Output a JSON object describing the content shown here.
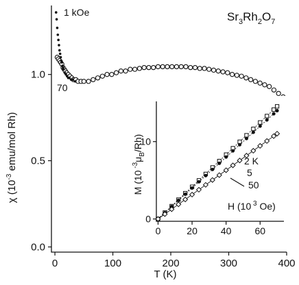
{
  "chart_data": [
    {
      "type": "scatter",
      "title": "Sr3Rh2O7",
      "title_parts": {
        "a": "Sr",
        "a_sub": "3",
        "b": "Rh",
        "b_sub": "2",
        "c": "O",
        "c_sub": "7"
      },
      "xlabel": "T (K)",
      "ylabel": {
        "pre": "χ (10",
        "exp": "-3",
        "post": " emu/mol Rh)"
      },
      "xlim": [
        -6,
        400
      ],
      "ylim": [
        -0.03,
        1.4
      ],
      "xticks": [
        0,
        100,
        200,
        300,
        400
      ],
      "xtick_labels": [
        "0",
        "100",
        "200",
        "300",
        "400"
      ],
      "yticks": [
        0.0,
        0.5,
        1.0
      ],
      "ytick_labels": [
        "0.0",
        "0.5",
        "1.0"
      ],
      "annotations": [
        "1 kOe",
        "70"
      ],
      "series": [
        {
          "name": "1 kOe",
          "marker": "filled-small",
          "x": [
            2,
            3,
            4,
            5,
            6,
            7,
            8,
            9,
            10,
            11,
            12,
            13,
            14,
            15,
            17,
            19,
            21,
            23,
            25,
            28,
            31,
            35
          ],
          "y": [
            1.36,
            1.32,
            1.27,
            1.23,
            1.2,
            1.17,
            1.14,
            1.12,
            1.1,
            1.08,
            1.07,
            1.05,
            1.04,
            1.03,
            1.01,
            1.0,
            0.99,
            0.98,
            0.98,
            0.97,
            0.97,
            0.96
          ]
        },
        {
          "name": "70",
          "marker": "open-circle",
          "x": [
            4,
            6,
            8,
            10,
            12,
            14,
            16,
            18,
            20,
            23,
            26,
            29,
            32,
            36,
            40,
            45,
            50,
            58,
            66,
            74,
            82,
            90,
            98,
            106,
            114,
            122,
            130,
            138,
            146,
            154,
            162,
            170,
            178,
            186,
            194,
            202,
            210,
            218,
            226,
            234,
            242,
            250,
            258,
            266,
            274,
            282,
            290,
            298,
            306,
            314,
            322,
            330,
            338,
            346,
            354,
            362,
            370,
            378,
            386,
            394
          ],
          "y": [
            1.1,
            1.09,
            1.08,
            1.07,
            1.06,
            1.04,
            1.03,
            1.02,
            1.01,
            1.0,
            0.99,
            0.98,
            0.97,
            0.97,
            0.96,
            0.96,
            0.96,
            0.96,
            0.97,
            0.98,
            0.99,
            1.0,
            1.0,
            1.01,
            1.02,
            1.02,
            1.03,
            1.03,
            1.035,
            1.04,
            1.04,
            1.04,
            1.045,
            1.045,
            1.045,
            1.045,
            1.045,
            1.045,
            1.045,
            1.04,
            1.04,
            1.035,
            1.035,
            1.03,
            1.025,
            1.02,
            1.015,
            1.01,
            1.0,
            0.995,
            0.99,
            0.98,
            0.97,
            0.96,
            0.95,
            0.94,
            0.93,
            0.91,
            0.89,
            0.87
          ]
        }
      ]
    },
    {
      "type": "line",
      "xlabel": {
        "pre": "H (10",
        "exp": " 3",
        "post": " Oe)"
      },
      "ylabel": {
        "pre": "M (10",
        "exp": " -3",
        "mu": "μ",
        "mu_sub": "B",
        "post": "/Rh)"
      },
      "xlim": [
        -1,
        74
      ],
      "ylim": [
        -0.3,
        15.2
      ],
      "xticks": [
        0,
        20,
        40,
        60
      ],
      "xtick_labels": [
        "0",
        "20",
        "40",
        "60"
      ],
      "yticks": [
        0,
        10
      ],
      "ytick_labels": [
        "0",
        "10"
      ],
      "series": [
        {
          "name": "2 K",
          "marker": "open-square",
          "x": [
            0,
            4,
            8,
            12,
            16,
            20,
            24,
            28,
            32,
            36,
            40,
            44,
            48,
            52,
            56,
            60,
            64,
            68,
            70
          ],
          "y": [
            0,
            0.83,
            1.66,
            2.5,
            3.33,
            4.16,
            4.99,
            5.82,
            6.66,
            7.49,
            8.32,
            9.15,
            9.98,
            10.82,
            11.65,
            12.48,
            13.31,
            14.14,
            14.56
          ]
        },
        {
          "name": "5",
          "marker": "filled-circle",
          "x": [
            0,
            4,
            8,
            12,
            16,
            20,
            24,
            28,
            32,
            36,
            40,
            44,
            48,
            52,
            56,
            60,
            64,
            68,
            70
          ],
          "y": [
            0,
            0.8,
            1.6,
            2.4,
            3.2,
            4.0,
            4.8,
            5.6,
            6.4,
            7.2,
            8.0,
            8.8,
            9.6,
            10.4,
            11.2,
            12.0,
            12.8,
            13.6,
            14.0
          ]
        },
        {
          "name": "50",
          "marker": "open-diamond",
          "x": [
            0,
            4,
            8,
            12,
            16,
            20,
            24,
            28,
            32,
            36,
            40,
            44,
            48,
            52,
            56,
            60,
            64,
            68,
            70
          ],
          "y": [
            0,
            0.63,
            1.26,
            1.89,
            2.52,
            3.15,
            3.78,
            4.41,
            5.04,
            5.67,
            6.3,
            6.93,
            7.56,
            8.19,
            8.82,
            9.45,
            10.08,
            10.71,
            11.03
          ]
        }
      ]
    }
  ]
}
